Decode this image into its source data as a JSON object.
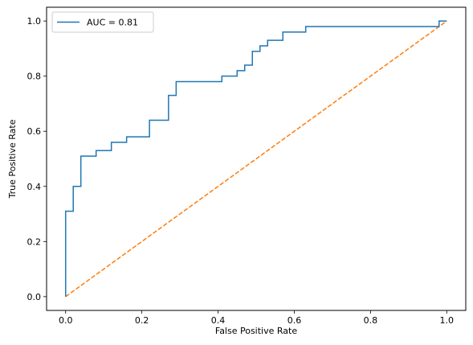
{
  "chart_data": {
    "type": "line",
    "title": "",
    "xlabel": "False Positive Rate",
    "ylabel": "True Positive Rate",
    "xlim": [
      -0.05,
      1.05
    ],
    "ylim": [
      -0.05,
      1.05
    ],
    "xticks": [
      0.0,
      0.2,
      0.4,
      0.6,
      0.8,
      1.0
    ],
    "yticks": [
      0.0,
      0.2,
      0.4,
      0.6,
      0.8,
      1.0
    ],
    "xtick_labels": [
      "0.0",
      "0.2",
      "0.4",
      "0.6",
      "0.8",
      "1.0"
    ],
    "ytick_labels": [
      "0.0",
      "0.2",
      "0.4",
      "0.6",
      "0.8",
      "1.0"
    ],
    "grid": false,
    "legend_position": "top-left",
    "series": [
      {
        "name": "AUC = 0.81",
        "color": "#1f77b4",
        "style": "solid",
        "x": [
          0.0,
          0.0,
          0.02,
          0.02,
          0.04,
          0.04,
          0.08,
          0.08,
          0.12,
          0.12,
          0.16,
          0.16,
          0.22,
          0.22,
          0.27,
          0.27,
          0.29,
          0.29,
          0.41,
          0.41,
          0.45,
          0.45,
          0.47,
          0.47,
          0.49,
          0.49,
          0.51,
          0.51,
          0.53,
          0.53,
          0.57,
          0.57,
          0.63,
          0.63,
          0.98,
          0.98,
          1.0
        ],
        "y": [
          0.0,
          0.31,
          0.31,
          0.4,
          0.4,
          0.51,
          0.51,
          0.53,
          0.53,
          0.56,
          0.56,
          0.58,
          0.58,
          0.64,
          0.64,
          0.73,
          0.73,
          0.78,
          0.78,
          0.8,
          0.8,
          0.82,
          0.82,
          0.84,
          0.84,
          0.89,
          0.89,
          0.91,
          0.91,
          0.93,
          0.93,
          0.96,
          0.96,
          0.98,
          0.98,
          1.0,
          1.0
        ]
      },
      {
        "color": "#ff7f0e",
        "style": "dashed",
        "x": [
          0.0,
          1.0
        ],
        "y": [
          0.0,
          1.0
        ]
      }
    ]
  }
}
